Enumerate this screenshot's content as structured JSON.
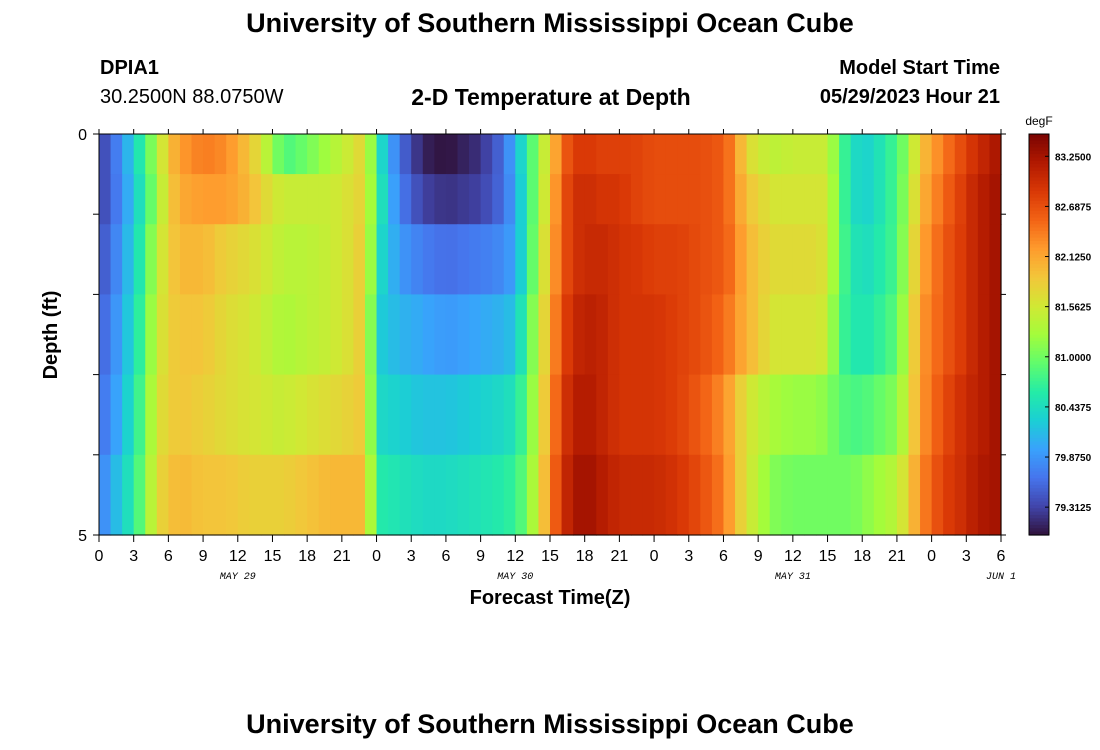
{
  "header": {
    "title": "University of Southern Mississippi Ocean Cube",
    "station_id": "DPIA1",
    "coords": "30.2500N  88.0750W",
    "subtitle": "2-D Temperature at Depth",
    "model_start_label": "Model Start Time",
    "model_start_value": "05/29/2023 Hour 21"
  },
  "footer": {
    "title": "University of Southern Mississippi Ocean Cube"
  },
  "chart_data": {
    "type": "heatmap",
    "title": "2-D Temperature at Depth",
    "xlabel": "Forecast Time(Z)",
    "ylabel": "Depth (ft)",
    "ylim": [
      0,
      5
    ],
    "y_tick_labels": [
      "0",
      "5"
    ],
    "x_tick_labels": [
      "0",
      "3",
      "6",
      "9",
      "12",
      "15",
      "18",
      "21",
      "0",
      "3",
      "6",
      "9",
      "12",
      "15",
      "18",
      "21",
      "0",
      "3",
      "6",
      "9",
      "12",
      "15",
      "18",
      "21",
      "0",
      "3",
      "6"
    ],
    "day_labels": [
      {
        "label": "MAY 29",
        "hour": 12
      },
      {
        "label": "MAY 30",
        "hour": 36
      },
      {
        "label": "MAY 31",
        "hour": 60
      },
      {
        "label": "JUN 1",
        "hour": 78
      }
    ],
    "x_range_hours": [
      0,
      78
    ],
    "colorbar": {
      "unit": "degF",
      "min": 79.0,
      "max": 83.5,
      "tick_labels": [
        "83.2500",
        "82.6875",
        "82.1250",
        "81.5625",
        "81.0000",
        "80.4375",
        "79.8750",
        "79.3125"
      ],
      "tick_values": [
        83.25,
        82.6875,
        82.125,
        81.5625,
        81.0,
        80.4375,
        79.875,
        79.3125
      ],
      "colors": [
        "#30123b",
        "#4145ab",
        "#4675ed",
        "#39a2fc",
        "#1bcfd4",
        "#24eca6",
        "#61fc6c",
        "#a4fc3b",
        "#d1e834",
        "#f3c63a",
        "#fe9b2d",
        "#f36315",
        "#d93806",
        "#b11901",
        "#7a0402"
      ]
    },
    "depth_levels_ft": [
      0.25,
      0.75,
      1.5,
      2.5,
      3.5,
      4.5
    ],
    "time_keys_hours": [
      0,
      1,
      3,
      4,
      5,
      6,
      7,
      9,
      11,
      13,
      14,
      15,
      16,
      18,
      20,
      22,
      23,
      24,
      26,
      28,
      30,
      33,
      35,
      36,
      37,
      38,
      39,
      40,
      41,
      42,
      43,
      44,
      45,
      46,
      48,
      50,
      52,
      54,
      55,
      56,
      57,
      58,
      60,
      62,
      63,
      64,
      65,
      66,
      67,
      69,
      70,
      71,
      73,
      75,
      76,
      77,
      78
    ],
    "temperature_degF": [
      [
        79.3,
        79.5,
        80.3,
        80.8,
        81.3,
        81.9,
        82.2,
        82.4,
        82.3,
        81.9,
        81.6,
        81.2,
        80.8,
        81.0,
        81.3,
        81.6,
        81.8,
        80.6,
        79.6,
        79.1,
        79.0,
        79.2,
        79.6,
        80.1,
        80.6,
        81.2,
        81.8,
        82.5,
        82.8,
        82.9,
        82.8,
        82.8,
        82.8,
        82.8,
        82.7,
        82.7,
        82.7,
        82.6,
        82.3,
        81.7,
        81.6,
        81.4,
        81.5,
        81.5,
        81.5,
        80.9,
        80.5,
        80.3,
        80.4,
        80.8,
        81.2,
        81.9,
        82.4,
        82.8,
        83.0,
        83.1,
        83.3
      ],
      [
        79.3,
        79.5,
        80.2,
        80.7,
        81.2,
        81.8,
        82.1,
        82.2,
        82.2,
        82.0,
        81.8,
        81.6,
        81.5,
        81.5,
        81.5,
        81.7,
        81.8,
        80.7,
        79.7,
        79.3,
        79.2,
        79.3,
        79.6,
        80.0,
        80.6,
        81.2,
        81.9,
        82.6,
        82.9,
        83.0,
        82.9,
        82.9,
        82.9,
        82.8,
        82.7,
        82.7,
        82.7,
        82.6,
        82.3,
        81.9,
        81.8,
        81.6,
        81.6,
        81.6,
        81.6,
        80.9,
        80.5,
        80.3,
        80.4,
        80.8,
        81.3,
        82.0,
        82.5,
        82.9,
        83.1,
        83.2,
        83.3
      ],
      [
        79.4,
        79.6,
        80.3,
        80.8,
        81.4,
        81.8,
        82.0,
        82.0,
        81.8,
        81.7,
        81.6,
        81.5,
        81.4,
        81.4,
        81.5,
        81.7,
        81.9,
        80.5,
        79.9,
        79.7,
        79.6,
        79.7,
        79.8,
        80.0,
        80.6,
        81.3,
        82.0,
        82.6,
        82.9,
        83.0,
        83.0,
        83.0,
        82.9,
        82.9,
        82.8,
        82.8,
        82.7,
        82.6,
        82.4,
        82.0,
        81.9,
        81.7,
        81.7,
        81.7,
        81.6,
        80.9,
        80.6,
        80.4,
        80.5,
        80.8,
        81.4,
        82.1,
        82.6,
        82.9,
        83.1,
        83.2,
        83.3
      ],
      [
        79.5,
        79.7,
        80.4,
        80.9,
        81.5,
        81.8,
        81.9,
        81.9,
        81.7,
        81.6,
        81.5,
        81.4,
        81.3,
        81.4,
        81.5,
        81.7,
        81.9,
        80.3,
        80.1,
        80.0,
        79.9,
        80.0,
        80.1,
        80.2,
        80.8,
        81.4,
        82.1,
        82.7,
        83.0,
        83.1,
        83.1,
        83.0,
        82.9,
        82.9,
        82.9,
        82.8,
        82.7,
        82.5,
        82.3,
        82.0,
        81.9,
        81.6,
        81.6,
        81.6,
        81.5,
        80.8,
        80.6,
        80.5,
        80.6,
        80.9,
        81.5,
        82.2,
        82.6,
        82.9,
        83.1,
        83.2,
        83.3
      ],
      [
        79.6,
        79.8,
        80.5,
        81.0,
        81.6,
        81.8,
        81.9,
        81.8,
        81.7,
        81.6,
        81.6,
        81.5,
        81.5,
        81.6,
        81.7,
        81.8,
        81.9,
        80.4,
        80.3,
        80.2,
        80.2,
        80.3,
        80.4,
        80.5,
        80.9,
        81.5,
        82.2,
        82.8,
        83.1,
        83.2,
        83.1,
        83.0,
        82.9,
        82.9,
        82.9,
        82.8,
        82.6,
        82.3,
        82.0,
        81.6,
        81.5,
        81.3,
        81.2,
        81.2,
        81.1,
        80.9,
        80.8,
        80.8,
        80.9,
        81.1,
        81.6,
        82.2,
        82.7,
        83.0,
        83.1,
        83.2,
        83.3
      ],
      [
        79.7,
        80.0,
        80.6,
        81.1,
        81.7,
        81.9,
        82.0,
        81.9,
        81.9,
        81.8,
        81.8,
        81.8,
        81.8,
        81.9,
        82.0,
        82.0,
        82.0,
        80.6,
        80.5,
        80.4,
        80.4,
        80.5,
        80.6,
        80.7,
        81.0,
        81.6,
        82.3,
        82.9,
        83.2,
        83.3,
        83.2,
        83.1,
        83.0,
        83.0,
        83.0,
        82.9,
        82.7,
        82.4,
        82.0,
        81.6,
        81.4,
        81.1,
        81.0,
        81.0,
        81.0,
        81.0,
        81.0,
        81.1,
        81.2,
        81.4,
        81.8,
        82.3,
        82.8,
        83.0,
        83.2,
        83.2,
        83.3
      ]
    ]
  }
}
